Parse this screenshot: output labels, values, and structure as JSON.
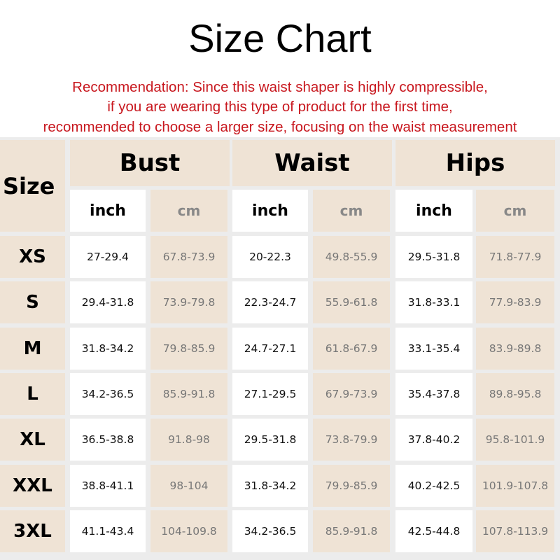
{
  "header": {
    "title": "Size Chart",
    "recommendation": [
      "Recommendation: Since this waist shaper is highly compressible,",
      "if you are wearing this type of product for the first time,",
      "recommended to choose a larger size, focusing on the waist measurement"
    ]
  },
  "table": {
    "size_label": "Size",
    "groups": [
      {
        "name": "Bust",
        "units": [
          "inch",
          "cm"
        ]
      },
      {
        "name": "Waist",
        "units": [
          "inch",
          "cm"
        ]
      },
      {
        "name": "Hips",
        "units": [
          "inch",
          "cm"
        ]
      }
    ],
    "rows": [
      [
        "XS",
        "27-29.4",
        "67.8-73.9",
        "20-22.3",
        "49.8-55.9",
        "29.5-31.8",
        "71.8-77.9"
      ],
      [
        "S",
        "29.4-31.8",
        "73.9-79.8",
        "22.3-24.7",
        "55.9-61.8",
        "31.8-33.1",
        "77.9-83.9"
      ],
      [
        "M",
        "31.8-34.2",
        "79.8-85.9",
        "24.7-27.1",
        "61.8-67.9",
        "33.1-35.4",
        "83.9-89.8"
      ],
      [
        "L",
        "34.2-36.5",
        "85.9-91.8",
        "27.1-29.5",
        "67.9-73.9",
        "35.4-37.8",
        "89.8-95.8"
      ],
      [
        "XL",
        "36.5-38.8",
        "91.8-98",
        "29.5-31.8",
        "73.8-79.9",
        "37.8-40.2",
        "95.8-101.9"
      ],
      [
        "XXL",
        "38.8-41.1",
        "98-104",
        "31.8-34.2",
        "79.9-85.9",
        "40.2-42.5",
        "101.9-107.8"
      ],
      [
        "3XL",
        "41.1-43.4",
        "104-109.8",
        "34.2-36.5",
        "85.9-91.8",
        "42.5-44.8",
        "107.8-113.9"
      ]
    ]
  }
}
